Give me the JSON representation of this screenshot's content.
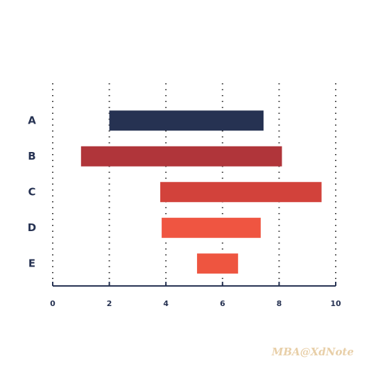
{
  "chart_data": {
    "type": "range-bar",
    "categories": [
      "A",
      "B",
      "C",
      "D",
      "E"
    ],
    "start": [
      2,
      1,
      3.8,
      3.85,
      5.1
    ],
    "end": [
      7.45,
      8.1,
      9.5,
      7.35,
      6.55
    ],
    "colors": [
      "#263252",
      "#b0353a",
      "#d2423b",
      "#ef5541",
      "#ee5540"
    ],
    "xlim": [
      0,
      10
    ],
    "xticks": [
      0,
      2,
      4,
      6,
      8,
      10
    ],
    "grid": true
  },
  "watermark": "MBA@XdNote"
}
